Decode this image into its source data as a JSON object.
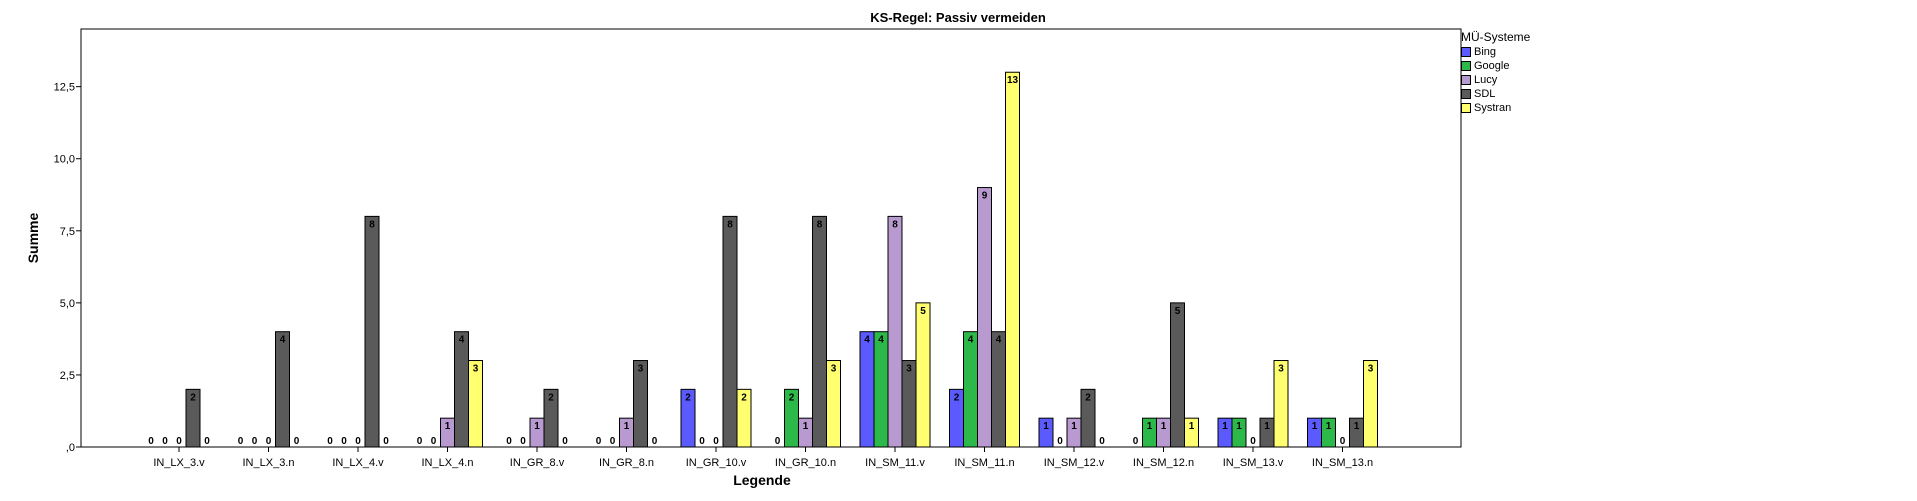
{
  "chart_data": {
    "type": "bar",
    "title": "KS-Regel: Passiv vermeiden",
    "xlabel": "Legende",
    "ylabel": "Summe",
    "ylim": [
      0,
      14.5
    ],
    "yticks": [
      {
        "value": 0,
        "label": ",0"
      },
      {
        "value": 2.5,
        "label": "2,5"
      },
      {
        "value": 5,
        "label": "5,0"
      },
      {
        "value": 7.5,
        "label": "7,5"
      },
      {
        "value": 10,
        "label": "10,0"
      },
      {
        "value": 12.5,
        "label": "12,5"
      }
    ],
    "categories": [
      "IN_LX_3.v",
      "IN_LX_3.n",
      "IN_LX_4.v",
      "IN_LX_4.n",
      "IN_GR_8.v",
      "IN_GR_8.n",
      "IN_GR_10.v",
      "IN_GR_10.n",
      "IN_SM_11.v",
      "IN_SM_11.n",
      "IN_SM_12.v",
      "IN_SM_12.n",
      "IN_SM_13.v",
      "IN_SM_13.n"
    ],
    "legend_title": "MÜ-Systeme",
    "legend_position": "right",
    "grid": false,
    "series": [
      {
        "name": "Bing",
        "color": "#5a5aff",
        "values": [
          0,
          0,
          0,
          0,
          0,
          0,
          2,
          0,
          4,
          2,
          1,
          0,
          1,
          1
        ]
      },
      {
        "name": "Google",
        "color": "#2db84a",
        "values": [
          0,
          0,
          0,
          0,
          0,
          0,
          0,
          2,
          4,
          4,
          0,
          1,
          1,
          1
        ]
      },
      {
        "name": "Lucy",
        "color": "#b89ad0",
        "values": [
          0,
          0,
          0,
          1,
          1,
          1,
          0,
          1,
          8,
          9,
          1,
          1,
          0,
          0
        ]
      },
      {
        "name": "SDL",
        "color": "#5a5a5a",
        "values": [
          2,
          4,
          8,
          4,
          2,
          3,
          8,
          8,
          3,
          4,
          2,
          5,
          1,
          1
        ]
      },
      {
        "name": "Systran",
        "color": "#ffff70",
        "values": [
          0,
          0,
          0,
          3,
          0,
          0,
          2,
          3,
          5,
          13,
          0,
          1,
          3,
          3
        ]
      }
    ]
  }
}
